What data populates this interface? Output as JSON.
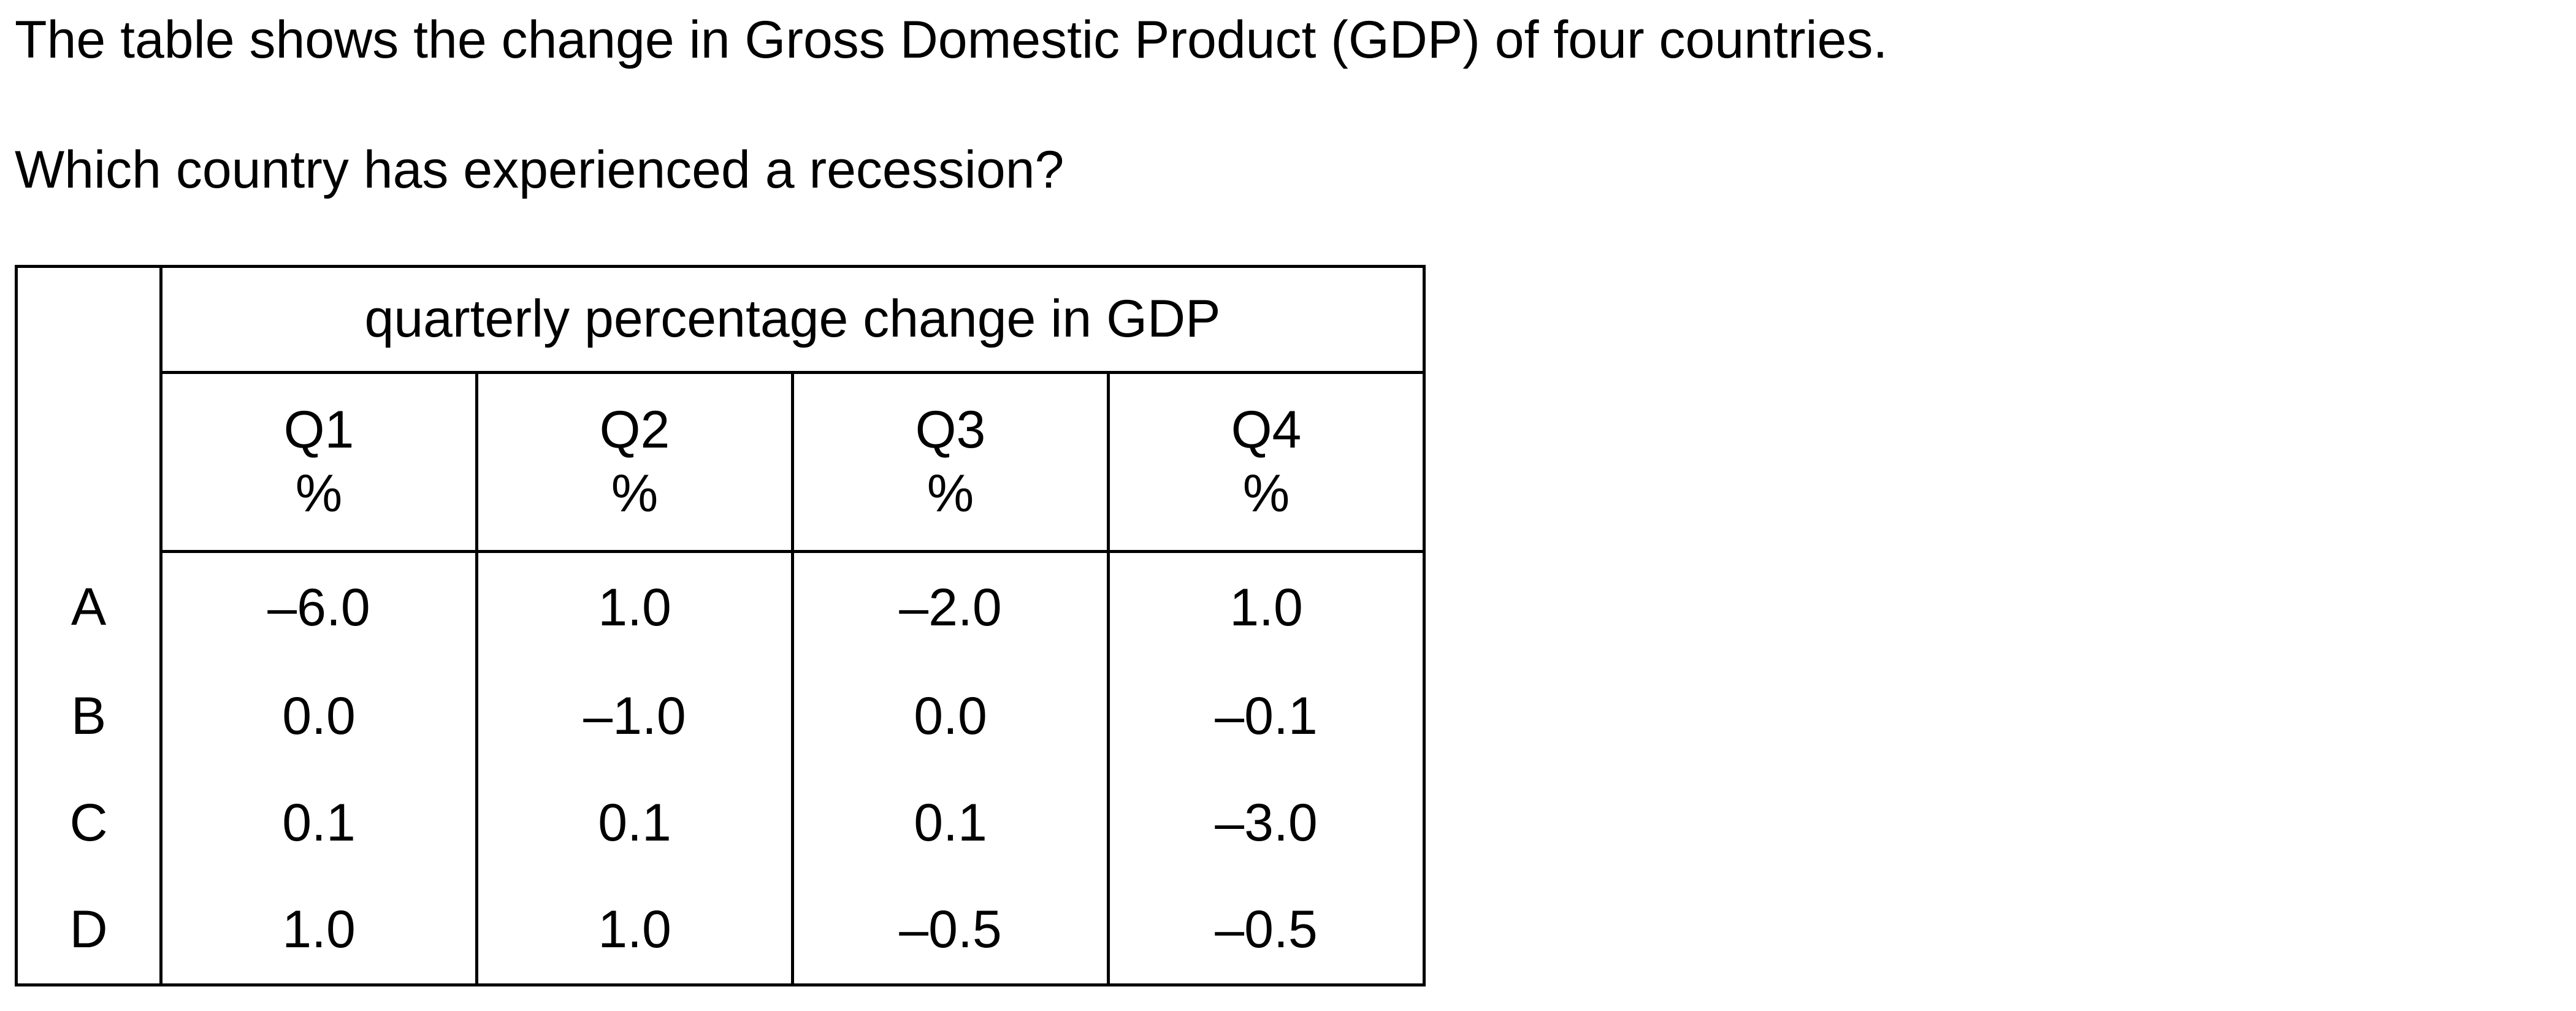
{
  "question": {
    "intro": "The table shows the change in Gross Domestic Product (GDP) of four countries.",
    "prompt": "Which country has experienced a recession?"
  },
  "table": {
    "header": "quarterly percentage change in GDP",
    "quarters": [
      {
        "name": "Q1",
        "unit": "%"
      },
      {
        "name": "Q2",
        "unit": "%"
      },
      {
        "name": "Q3",
        "unit": "%"
      },
      {
        "name": "Q4",
        "unit": "%"
      }
    ],
    "rows": [
      {
        "label": "A",
        "values": [
          "–6.0",
          "1.0",
          "–2.0",
          "1.0"
        ]
      },
      {
        "label": "B",
        "values": [
          "0.0",
          "–1.0",
          "0.0",
          "–0.1"
        ]
      },
      {
        "label": "C",
        "values": [
          "0.1",
          "0.1",
          "0.1",
          "–3.0"
        ]
      },
      {
        "label": "D",
        "values": [
          "1.0",
          "1.0",
          "–0.5",
          "–0.5"
        ]
      }
    ]
  }
}
